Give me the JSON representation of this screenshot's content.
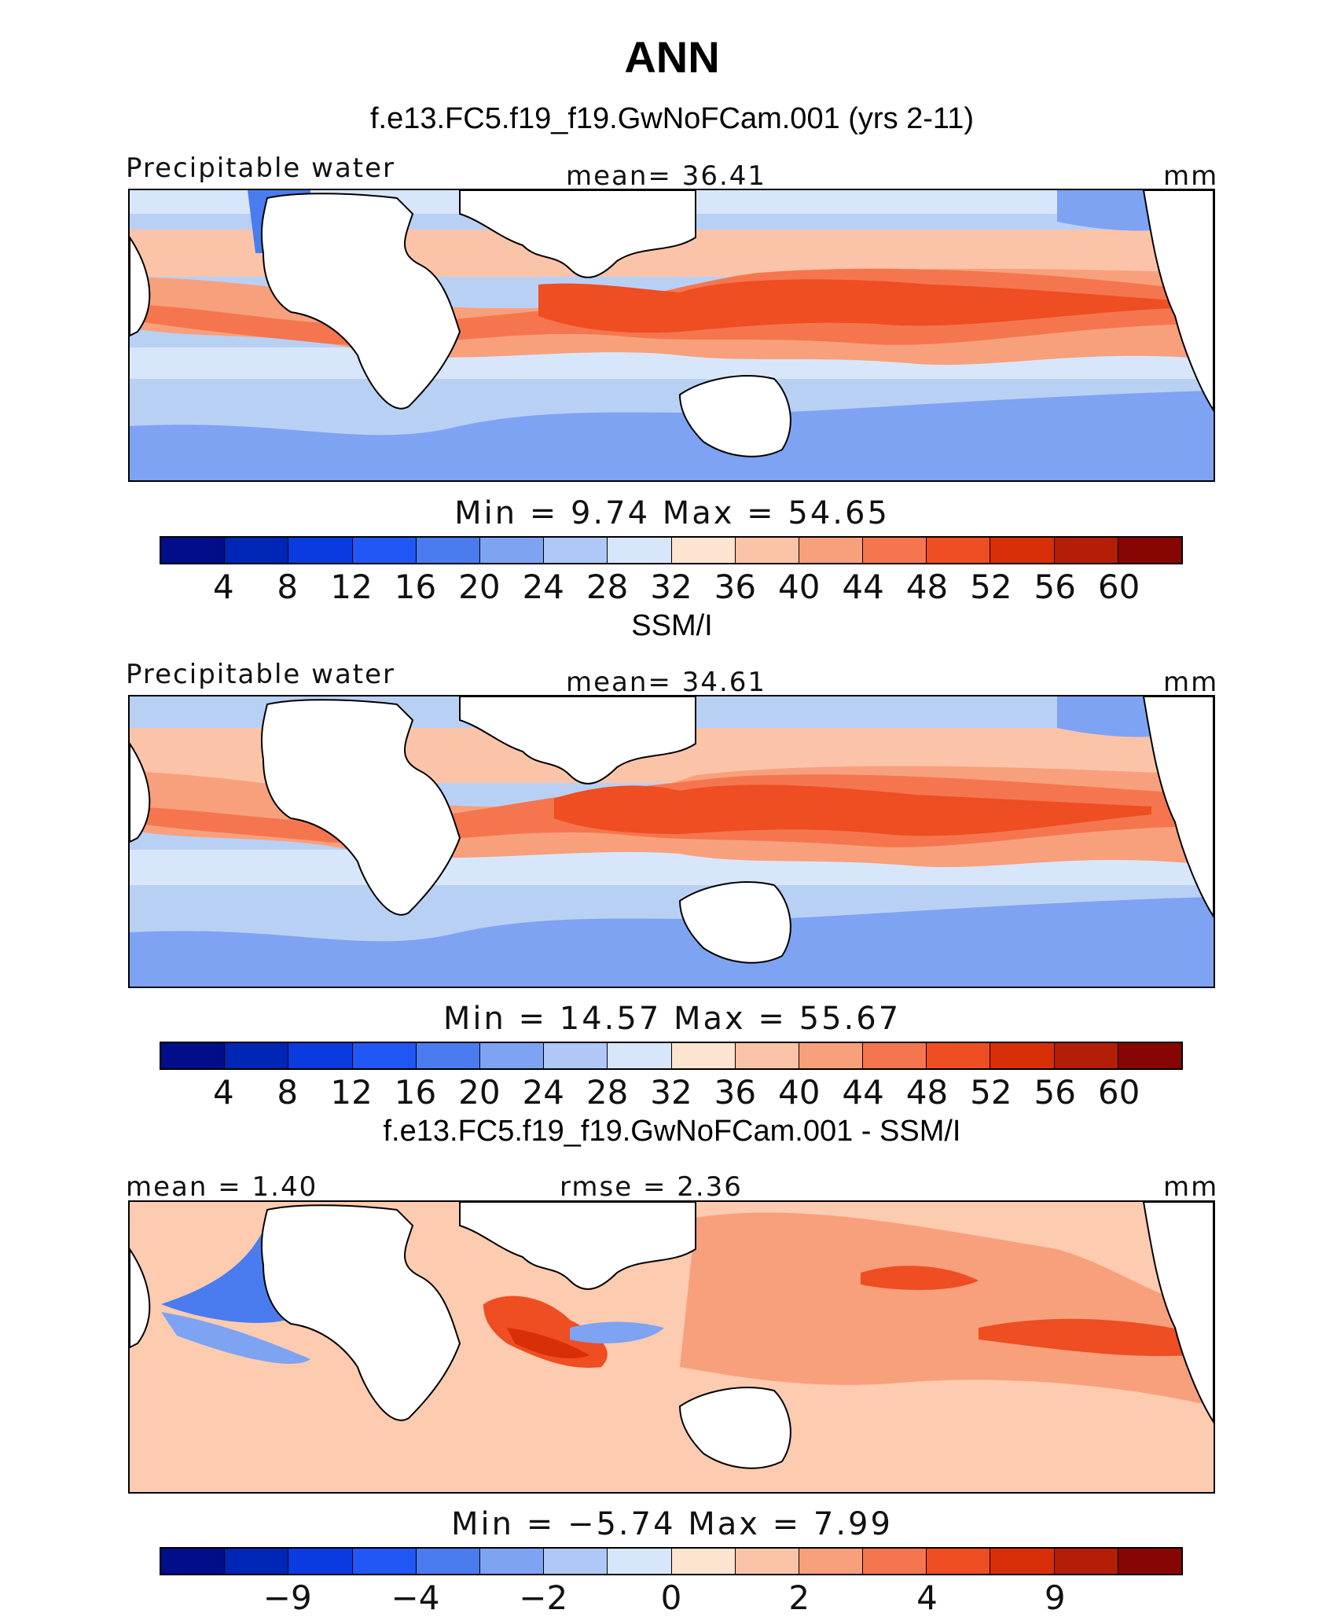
{
  "title": "ANN",
  "chart_data": [
    {
      "type": "heatmap",
      "title": "f.e13.FC5.f19_f19.GwNoFCam.001 (yrs 2-11)",
      "variable": "Precipitable water",
      "stat_left": "",
      "stat_center": "mean=   36.41",
      "units": "mm",
      "min_max": "Min  =    9.74  Max  =   54.65",
      "mean": 36.41,
      "min": 9.74,
      "max": 54.65,
      "levels": [
        4,
        8,
        12,
        16,
        20,
        24,
        28,
        32,
        36,
        40,
        44,
        48,
        52,
        56,
        60
      ],
      "tick_labels": [
        "4",
        "8",
        "12",
        "16",
        "20",
        "24",
        "28",
        "32",
        "36",
        "40",
        "44",
        "48",
        "52",
        "56",
        "60"
      ],
      "tick_positions": [
        1,
        2,
        3,
        4,
        5,
        6,
        7,
        8,
        9,
        10,
        11,
        12,
        13,
        14,
        15
      ]
    },
    {
      "type": "heatmap",
      "title": "SSM/I",
      "variable": "Precipitable water",
      "stat_left": "",
      "stat_center": "mean=   34.61",
      "units": "mm",
      "min_max": "Min  =   14.57  Max  =   55.67",
      "mean": 34.61,
      "min": 14.57,
      "max": 55.67,
      "levels": [
        4,
        8,
        12,
        16,
        20,
        24,
        28,
        32,
        36,
        40,
        44,
        48,
        52,
        56,
        60
      ],
      "tick_labels": [
        "4",
        "8",
        "12",
        "16",
        "20",
        "24",
        "28",
        "32",
        "36",
        "40",
        "44",
        "48",
        "52",
        "56",
        "60"
      ],
      "tick_positions": [
        1,
        2,
        3,
        4,
        5,
        6,
        7,
        8,
        9,
        10,
        11,
        12,
        13,
        14,
        15
      ]
    },
    {
      "type": "heatmap",
      "title": "f.e13.FC5.f19_f19.GwNoFCam.001 - SSM/I",
      "variable": "",
      "stat_left": "mean  =    1.40",
      "stat_center": "rmse  =    2.36",
      "units": "mm",
      "min_max": "Min  =   −5.74  Max  =    7.99",
      "mean": 1.4,
      "rmse": 2.36,
      "min": -5.74,
      "max": 7.99,
      "tick_labels": [
        "−9",
        "−4",
        "−2",
        "0",
        "2",
        "4",
        "9"
      ],
      "tick_positions": [
        2,
        4,
        6,
        8,
        10,
        12,
        14
      ]
    }
  ],
  "palette": [
    "#000e8a",
    "#0026b5",
    "#0a3be0",
    "#2057f5",
    "#4a7cf0",
    "#7ea3f2",
    "#afc8f5",
    "#d8e6fb",
    "#fde4d0",
    "#fbc4a8",
    "#f8a07c",
    "#f5764e",
    "#ef4d22",
    "#d92f08",
    "#b41d08",
    "#870604"
  ],
  "land_color": "#ffffff"
}
